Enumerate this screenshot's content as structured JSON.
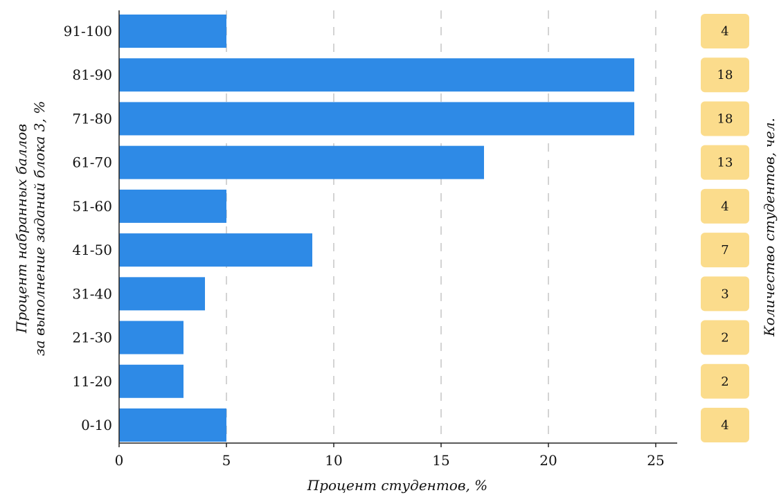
{
  "chart_data": {
    "type": "bar",
    "orientation": "horizontal",
    "categories": [
      "0-10",
      "11-20",
      "21-30",
      "31-40",
      "41-50",
      "51-60",
      "61-70",
      "71-80",
      "81-90",
      "91-100"
    ],
    "values": [
      5,
      3,
      3,
      4,
      9,
      5,
      17,
      24,
      24,
      5
    ],
    "counts": [
      "4",
      "2",
      "2",
      "3",
      "7",
      "4",
      "13",
      "18",
      "18",
      "4"
    ],
    "xlabel": "Процент студентов, %",
    "ylabel_lines": [
      "Процент набранных баллов",
      "за выполнение заданий блока 3, %"
    ],
    "right_label": "Количество студентов, чел.",
    "xlim": [
      0,
      26
    ],
    "xticks": [
      "0",
      "5",
      "10",
      "15",
      "20",
      "25"
    ],
    "grid": "vertical-dashed",
    "colors": {
      "bar": "#2e8ae6",
      "count_badge": "#fbdc8c",
      "grid": "#d3d3d3",
      "axis": "#222222"
    }
  }
}
